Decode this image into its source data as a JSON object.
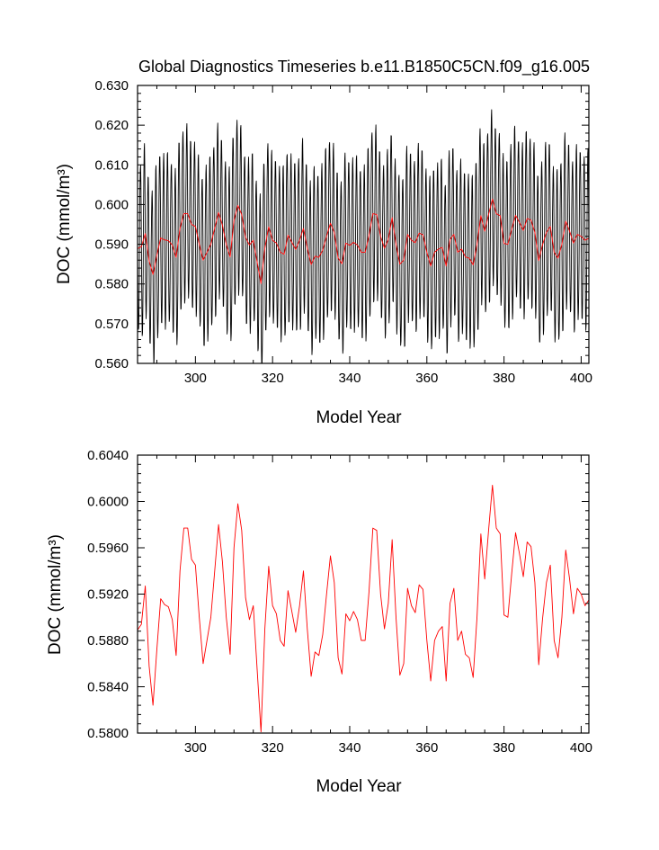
{
  "chart_data": [
    {
      "type": "line",
      "title": "Global Diagnostics Timeseries b.e11.B1850C5CN.f09_g16.005",
      "xlabel": "Model Year",
      "ylabel": "DOC (mmol/m³)",
      "xlim": [
        285,
        402
      ],
      "ylim": [
        0.56,
        0.63
      ],
      "x_ticks": [
        300,
        320,
        340,
        360,
        380,
        400
      ],
      "y_ticks": [
        0.56,
        0.57,
        0.58,
        0.59,
        0.6,
        0.61,
        0.62,
        0.63
      ],
      "x_tick_labels": [
        "300",
        "320",
        "340",
        "360",
        "380",
        "400"
      ],
      "y_tick_labels": [
        "0.560",
        "0.570",
        "0.580",
        "0.590",
        "0.600",
        "0.610",
        "0.620",
        "0.630"
      ],
      "grid": false,
      "series": [
        {
          "color": "#000000",
          "sampling": "monthly",
          "note_values": "monthly values = annual mean + seasonal cycle",
          "seasonal_cycle": [
            0.0075,
            0.015,
            0.0205,
            0.0215,
            0.016,
            0.006,
            -0.0055,
            -0.016,
            -0.0215,
            -0.0205,
            -0.015,
            -0.007
          ]
        },
        {
          "color": "#ff0000",
          "sampling": "annual",
          "source": "annual"
        }
      ]
    },
    {
      "type": "line",
      "xlabel": "Model Year",
      "ylabel": "DOC (mmol/m³)",
      "xlim": [
        285,
        402
      ],
      "ylim": [
        0.58,
        0.604
      ],
      "x_ticks": [
        300,
        320,
        340,
        360,
        380,
        400
      ],
      "y_ticks": [
        0.58,
        0.584,
        0.588,
        0.592,
        0.596,
        0.6,
        0.604
      ],
      "x_tick_labels": [
        "300",
        "320",
        "340",
        "360",
        "380",
        "400"
      ],
      "y_tick_labels": [
        "0.5800",
        "0.5840",
        "0.5880",
        "0.5920",
        "0.5960",
        "0.6000",
        "0.6040"
      ],
      "grid": false,
      "series": [
        {
          "color": "#ff0000",
          "sampling": "annual",
          "source": "annual"
        }
      ]
    }
  ],
  "annual": {
    "x": [
      285,
      286,
      287,
      288,
      289,
      290,
      291,
      292,
      293,
      294,
      295,
      296,
      297,
      298,
      299,
      300,
      301,
      302,
      303,
      304,
      305,
      306,
      307,
      308,
      309,
      310,
      311,
      312,
      313,
      314,
      315,
      316,
      317,
      318,
      319,
      320,
      321,
      322,
      323,
      324,
      325,
      326,
      327,
      328,
      329,
      330,
      331,
      332,
      333,
      334,
      335,
      336,
      337,
      338,
      339,
      340,
      341,
      342,
      343,
      344,
      345,
      346,
      347,
      348,
      349,
      350,
      351,
      352,
      353,
      354,
      355,
      356,
      357,
      358,
      359,
      360,
      361,
      362,
      363,
      364,
      365,
      366,
      367,
      368,
      369,
      370,
      371,
      372,
      373,
      374,
      375,
      376,
      377,
      378,
      379,
      380,
      381,
      382,
      383,
      384,
      385,
      386,
      387,
      388,
      389,
      390,
      391,
      392,
      393,
      394,
      395,
      396,
      397,
      398,
      399,
      400,
      401,
      402
    ],
    "values": [
      0.5889,
      0.5894,
      0.5927,
      0.5858,
      0.5824,
      0.5872,
      0.5916,
      0.5911,
      0.5909,
      0.5898,
      0.5867,
      0.594,
      0.5977,
      0.5977,
      0.595,
      0.5945,
      0.59,
      0.586,
      0.588,
      0.59,
      0.594,
      0.598,
      0.5948,
      0.59,
      0.5868,
      0.596,
      0.5998,
      0.5975,
      0.5917,
      0.5898,
      0.591,
      0.5855,
      0.5801,
      0.589,
      0.5944,
      0.591,
      0.5903,
      0.588,
      0.5875,
      0.5923,
      0.5905,
      0.5887,
      0.591,
      0.594,
      0.589,
      0.5849,
      0.587,
      0.5867,
      0.5885,
      0.592,
      0.5953,
      0.593,
      0.5865,
      0.5851,
      0.5903,
      0.5897,
      0.5905,
      0.5898,
      0.588,
      0.588,
      0.5922,
      0.5977,
      0.5975,
      0.592,
      0.589,
      0.5912,
      0.5967,
      0.59,
      0.585,
      0.586,
      0.5925,
      0.591,
      0.5904,
      0.5928,
      0.5924,
      0.588,
      0.5845,
      0.588,
      0.5888,
      0.5892,
      0.5845,
      0.5912,
      0.5925,
      0.588,
      0.5888,
      0.5868,
      0.5865,
      0.5848,
      0.59,
      0.5972,
      0.5933,
      0.5975,
      0.6014,
      0.5977,
      0.5972,
      0.5902,
      0.59,
      0.5938,
      0.5973,
      0.5955,
      0.5935,
      0.5965,
      0.5961,
      0.593,
      0.5859,
      0.5899,
      0.593,
      0.5945,
      0.588,
      0.5865,
      0.59,
      0.5958,
      0.5933,
      0.5903,
      0.5925,
      0.592,
      0.591,
      0.5915
    ]
  }
}
